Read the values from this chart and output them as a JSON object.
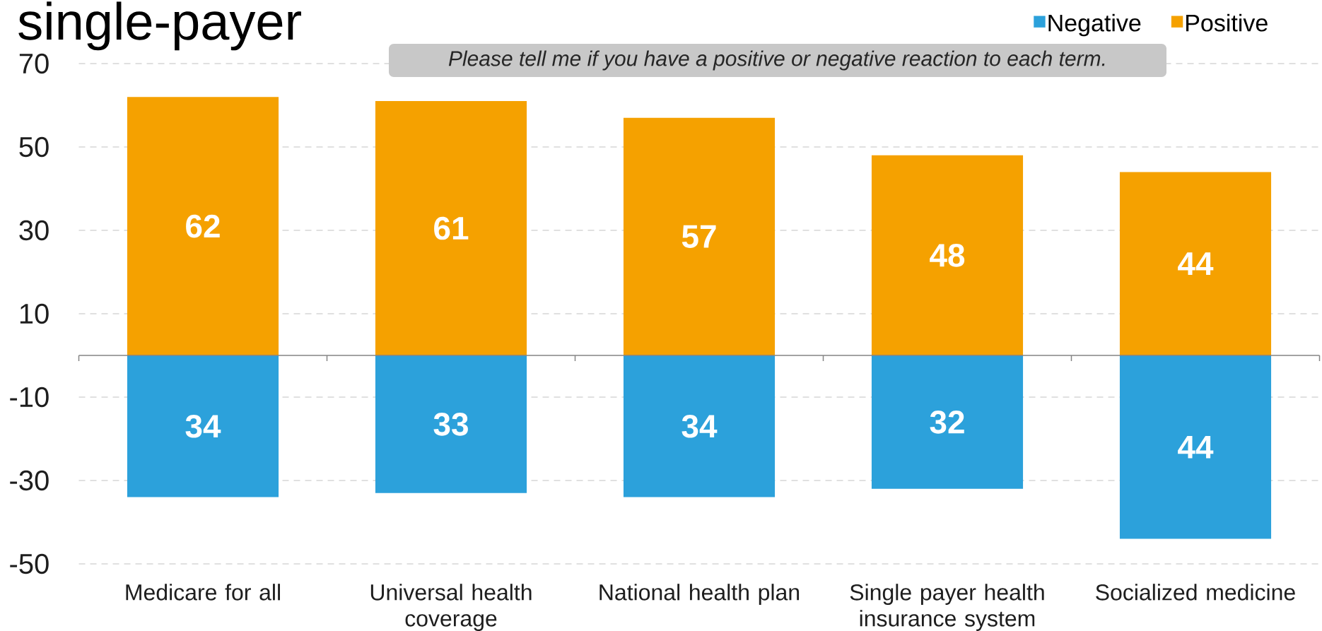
{
  "chart_data": {
    "type": "bar",
    "title": "single-payer",
    "categories": [
      "Medicare for all",
      "Universal health coverage",
      "National health plan",
      "Single payer health insurance system",
      "Socialized medicine"
    ],
    "series": [
      {
        "name": "Negative",
        "color": "#2ca1db",
        "values": [
          34,
          33,
          34,
          32,
          44
        ],
        "base": [
          -34,
          -33,
          -34,
          -32,
          -44
        ]
      },
      {
        "name": "Positive",
        "color": "#f5a100",
        "values": [
          62,
          61,
          57,
          48,
          44
        ]
      }
    ],
    "data_labels": true,
    "ylim": [
      -50,
      70
    ],
    "yticks": [
      -50,
      -30,
      -10,
      10,
      30,
      50,
      70
    ],
    "grid": "y",
    "legend": "top right",
    "annotations": [
      "Please tell me if you have a positive or negative reaction to each term."
    ]
  }
}
